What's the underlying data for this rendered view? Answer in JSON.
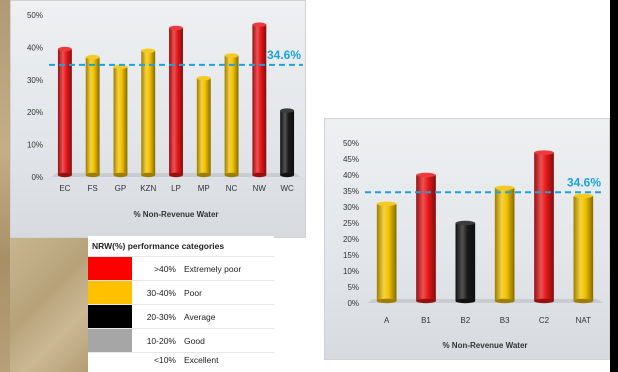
{
  "chart_data": [
    {
      "type": "bar",
      "xlabel": "% Non-Revenue Water",
      "ylabel": "",
      "ylim": [
        0,
        50
      ],
      "yticks": [
        "0%",
        "10%",
        "20%",
        "30%",
        "40%",
        "50%"
      ],
      "categories": [
        "EC",
        "FS",
        "GP",
        "KZN",
        "LP",
        "MP",
        "NC",
        "NW",
        "WC"
      ],
      "values": [
        39.5,
        37,
        34,
        39,
        46,
        30.5,
        37.5,
        47,
        20.5
      ],
      "colors": [
        "#e8181b",
        "#f2c200",
        "#f2c200",
        "#f2c200",
        "#e8181b",
        "#f2c200",
        "#f2c200",
        "#e8181b",
        "#1a1a1a"
      ],
      "reference_line": {
        "value": 34.6,
        "label": "34.6%",
        "color": "#1aa3dc"
      }
    },
    {
      "type": "bar",
      "xlabel": "% Non-Revenue Water",
      "ylabel": "",
      "ylim": [
        0,
        50
      ],
      "yticks": [
        "0%",
        "5%",
        "10%",
        "15%",
        "20%",
        "25%",
        "30%",
        "35%",
        "40%",
        "45%",
        "50%"
      ],
      "categories": [
        "A",
        "B1",
        "B2",
        "B3",
        "C2",
        "NAT"
      ],
      "values": [
        31,
        40,
        25,
        36,
        47,
        33.5
      ],
      "colors": [
        "#f2c200",
        "#e8181b",
        "#1a1a1a",
        "#f2c200",
        "#e8181b",
        "#f2c200"
      ],
      "reference_line": {
        "value": 34.6,
        "label": "34.6%",
        "color": "#1aa3dc"
      }
    }
  ],
  "legend_table": {
    "title": "NRW(%) performance categories",
    "rows": [
      {
        "range": ">40%",
        "label": "Extremely poor",
        "color": "#ff0000"
      },
      {
        "range": "30-40%",
        "label": "Poor",
        "color": "#ffc000"
      },
      {
        "range": "20-30%",
        "label": "Average",
        "color": "#000000"
      },
      {
        "range": "10-20%",
        "label": "Good",
        "color": "#a6a6a6"
      },
      {
        "range": "<10%",
        "label": "Excellent",
        "color": "#ffffff"
      }
    ]
  }
}
